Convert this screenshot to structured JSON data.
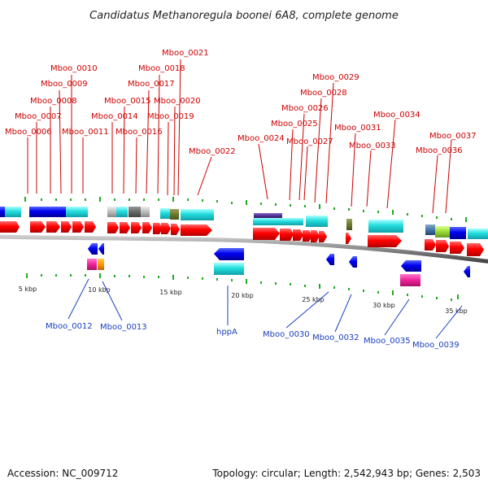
{
  "title": "Candidatus Methanoregula boonei 6A8, complete genome",
  "footer": {
    "accession": "Accession: NC_009712",
    "stats": "Topology: circular; Length: 2,542,943 bp; Genes: 2,503"
  },
  "colors": {
    "cds": "#ff0000",
    "backbone": "#8c8c8c",
    "top_label": "#cc0000",
    "bottom_label": "#1a3fbf",
    "tick": "#22aa22"
  },
  "scale_labels": [
    "5 kbp",
    "10 kbp",
    "15 kbp",
    "20 kbp",
    "25 kbp",
    "30 kbp",
    "35 kbp"
  ],
  "top_genes": [
    "Mboo_0006",
    "Mboo_0007",
    "Mboo_0008",
    "Mboo_0009",
    "Mboo_0010",
    "Mboo_0011",
    "Mboo_0014",
    "Mboo_0015",
    "Mboo_0016",
    "Mboo_0017",
    "Mboo_0018",
    "Mboo_0019",
    "Mboo_0020",
    "Mboo_0021",
    "Mboo_0022",
    "Mboo_0024",
    "Mboo_0025",
    "Mboo_0026",
    "Mboo_0027",
    "Mboo_0028",
    "Mboo_0029",
    "Mboo_0031",
    "Mboo_0033",
    "Mboo_0034",
    "Mboo_0036",
    "Mboo_0037"
  ],
  "bottom_genes": [
    "Mboo_0012",
    "Mboo_0013",
    "hppA",
    "Mboo_0030",
    "Mboo_0032",
    "Mboo_0035",
    "Mboo_0039"
  ]
}
